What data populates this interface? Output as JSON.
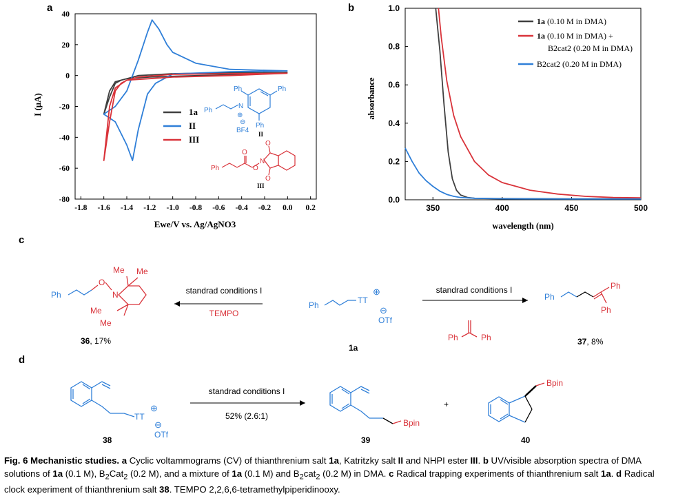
{
  "panel_labels": {
    "a": "a",
    "b": "b",
    "c": "c",
    "d": "d"
  },
  "chart_data": [
    {
      "type": "line",
      "panel": "a",
      "xlabel": "Ewe/V vs. Ag/AgNO3",
      "ylabel": "I (μA)",
      "xlim": [
        -1.85,
        0.25
      ],
      "ylim": [
        -80,
        40
      ],
      "x_ticks": [
        "-1.8",
        "-1.6",
        "-1.4",
        "-1.2",
        "-1.0",
        "-0.8",
        "-0.6",
        "-0.4",
        "-0.2",
        "0.0",
        "0.2"
      ],
      "y_ticks": [
        "40",
        "20",
        "0",
        "-20",
        "-40",
        "-60",
        "-80"
      ],
      "legend_position": "center-right",
      "series": [
        {
          "name": "1a",
          "color": "#404040",
          "x": [
            0.0,
            -0.5,
            -1.0,
            -1.3,
            -1.4,
            -1.5,
            -1.55,
            -1.6,
            -1.55,
            -1.5,
            -1.45,
            -1.4,
            -1.2,
            -1.0,
            -0.5,
            0.0
          ],
          "y": [
            2,
            1.8,
            1.2,
            0,
            -2,
            -4,
            -10,
            -25,
            -14,
            -5,
            -3,
            -2,
            -1,
            -0.5,
            0.5,
            2
          ]
        },
        {
          "name": "II",
          "color": "#2f7fd8",
          "x": [
            0.0,
            -0.5,
            -1.0,
            -1.15,
            -1.22,
            -1.3,
            -1.35,
            -1.4,
            -1.5,
            -1.6,
            -1.5,
            -1.4,
            -1.3,
            -1.22,
            -1.18,
            -1.12,
            -1.05,
            -1.0,
            -0.8,
            -0.5,
            0.0
          ],
          "y": [
            3,
            2.5,
            1,
            -5,
            -12,
            -35,
            -55,
            -45,
            -30,
            -25,
            -20,
            -10,
            10,
            28,
            36,
            30,
            20,
            15,
            8,
            4,
            3
          ]
        },
        {
          "name": "III",
          "color": "#d9333a",
          "x": [
            0.0,
            -0.5,
            -1.0,
            -1.3,
            -1.4,
            -1.5,
            -1.55,
            -1.6,
            -1.55,
            -1.5,
            -1.45,
            -1.4,
            -1.2,
            -1.0,
            -0.5,
            0.0
          ],
          "y": [
            1.5,
            1.2,
            0.8,
            -1,
            -3,
            -8,
            -20,
            -55,
            -30,
            -10,
            -5,
            -3,
            -2,
            -1,
            0,
            1.5
          ]
        }
      ]
    },
    {
      "type": "line",
      "panel": "b",
      "xlabel": "wavelength (nm)",
      "ylabel": "absorbance",
      "xlim": [
        330,
        500
      ],
      "ylim": [
        0.0,
        1.0
      ],
      "x_ticks": [
        "350",
        "400",
        "450",
        "500"
      ],
      "y_ticks": [
        "1.0",
        "0.8",
        "0.6",
        "0.4",
        "0.2",
        "0.0"
      ],
      "legend_position": "top-right",
      "series": [
        {
          "name": "1a (0.10 M in DMA)",
          "color": "#404040",
          "x": [
            352,
            355,
            358,
            361,
            364,
            367,
            370,
            375,
            380,
            400,
            450,
            500
          ],
          "y": [
            1.0,
            0.78,
            0.5,
            0.25,
            0.11,
            0.05,
            0.025,
            0.012,
            0.008,
            0.006,
            0.005,
            0.005
          ]
        },
        {
          "name": "1a (0.10 M in DMA) + B2cat2 (0.20 M in DMA)",
          "color": "#d9333a",
          "x": [
            354,
            356,
            360,
            365,
            370,
            380,
            390,
            400,
            420,
            440,
            460,
            480,
            500
          ],
          "y": [
            1.0,
            0.85,
            0.62,
            0.44,
            0.33,
            0.2,
            0.13,
            0.09,
            0.05,
            0.03,
            0.018,
            0.012,
            0.01
          ]
        },
        {
          "name": "B2cat2 (0.20 M in DMA)",
          "color": "#2f7fd8",
          "x": [
            330,
            335,
            340,
            345,
            350,
            355,
            360,
            365,
            370,
            380,
            400,
            450,
            500
          ],
          "y": [
            0.27,
            0.2,
            0.14,
            0.1,
            0.07,
            0.045,
            0.028,
            0.018,
            0.012,
            0.008,
            0.005,
            0.004,
            0.004
          ]
        }
      ]
    }
  ],
  "panel_a": {
    "legend": [
      "1a",
      "II",
      "III"
    ],
    "struct_II": {
      "ph": "Ph",
      "bf4_minus": "⊖",
      "bf4": "BF4",
      "n_plus": "⊕",
      "n": "N",
      "label": "II"
    },
    "struct_III": {
      "ph": "Ph",
      "o": "O",
      "n": "N",
      "label": "III"
    }
  },
  "panel_b": {
    "legend": [
      {
        "bold": "1a",
        "rest": " (0.10 M in DMA)"
      },
      {
        "bold": "1a",
        "rest": " (0.10 M in DMA) +",
        "line2": "B2cat2 (0.20 M in DMA)"
      },
      {
        "bold": "",
        "rest": "B2cat2 (0.20 M in DMA)"
      }
    ]
  },
  "panel_c": {
    "left_arrow_top": "standrad conditions I",
    "left_arrow_bottom": "TEMPO",
    "right_arrow_top": "standrad conditions I",
    "reagent_ph1": "Ph",
    "reagent_ph2": "Ph",
    "sm_ph": "Ph",
    "sm_tt": "TT",
    "sm_plus": "⊕",
    "sm_minus": "⊖",
    "sm_otf": "OTf",
    "sm_label": "1a",
    "p36_ph": "Ph",
    "p36_o": "O",
    "p36_n": "N",
    "p36_me": "Me",
    "p36_label_num": "36",
    "p36_label_yield": ", 17%",
    "p37_ph": "Ph",
    "p37_label_num": "37",
    "p37_label_yield": ", 8%"
  },
  "panel_d": {
    "arrow_top": "standrad conditions I",
    "arrow_bottom": "52% (2.6:1)",
    "plus": "+",
    "sm_tt": "TT",
    "sm_plus": "⊕",
    "sm_minus": "⊖",
    "sm_otf": "OTf",
    "sm_label": "38",
    "p39_bpin": "Bpin",
    "p39_label": "39",
    "p40_bpin": "Bpin",
    "p40_label": "40"
  },
  "caption": {
    "fig": "Fig. 6 Mechanistic studies.",
    "a": "a",
    "t1": " Cyclic voltammograms (CV) of thianthrenium salt ",
    "c1a": "1a",
    "t2": ", Katritzky salt ",
    "cII": "II",
    "t3": " and NHPI ester ",
    "cIII": "III",
    "t4": ". ",
    "b": "b",
    "t5": " UV/visible absorption spectra of DMA solutions of ",
    "c1a_2": "1a",
    "t6": " (0.1 M), B",
    "t6s": "2",
    "t6b": "Cat",
    "t6s2": "2",
    "t7": " (0.2 M), and a mixture of ",
    "c1a_3": "1a",
    "t8": " (0.1 M) and B",
    "t8s": "2",
    "t8b": "cat",
    "t8s2": "2",
    "t9": " (0.2 M) in DMA. ",
    "c": "c",
    "t10": " Radical trapping experiments of thianthrenium salt ",
    "c1a_4": "1a",
    "t11": ". ",
    "d": "d",
    "t12": " Radical clock experiment of thianthrenium salt ",
    "c38": "38",
    "t13": ". TEMPO 2,2,6,6-tetramethylpiperidinooxy."
  }
}
